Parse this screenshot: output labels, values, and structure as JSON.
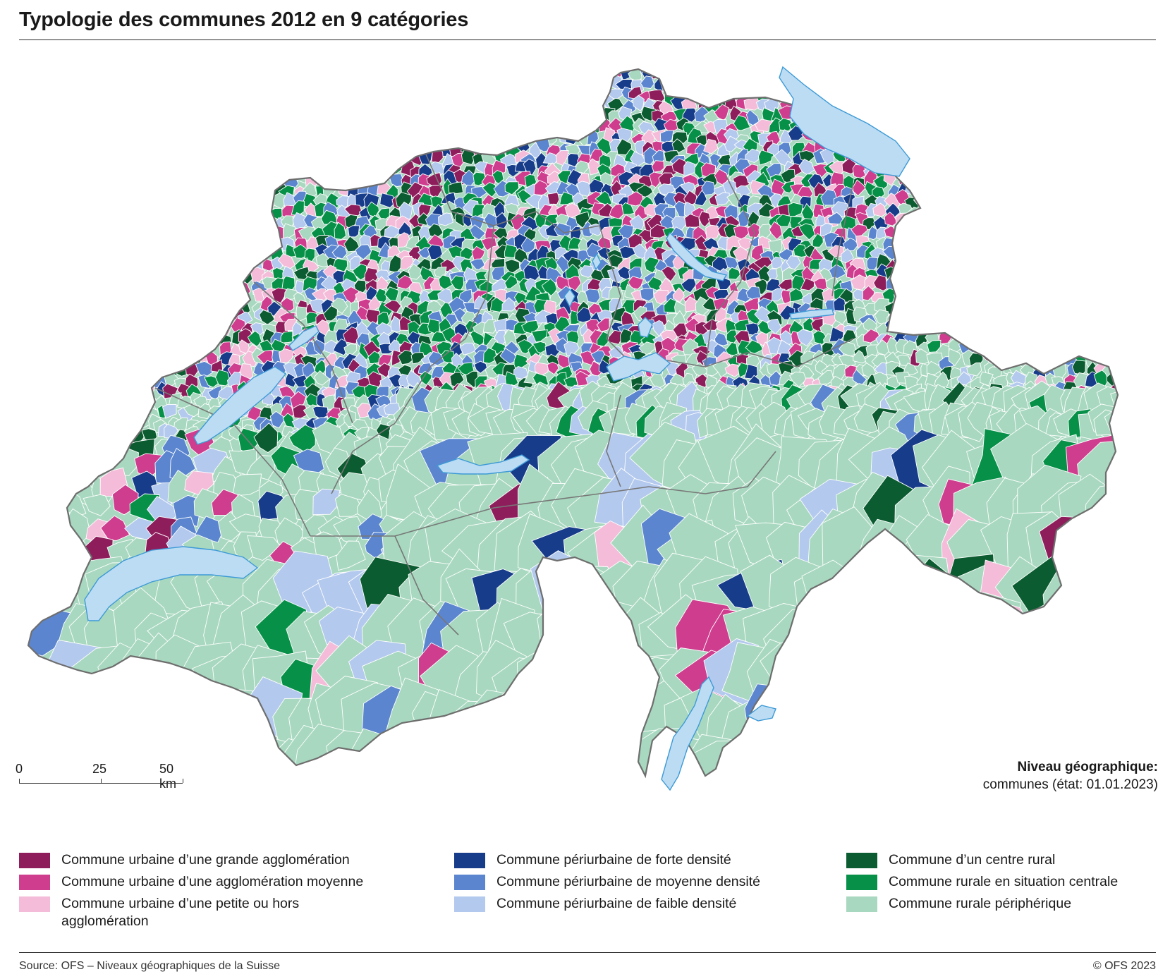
{
  "title": "Typologie des communes 2012 en 9 catégories",
  "colors": {
    "urban_large": "#8e1d5c",
    "urban_medium": "#cf3d8e",
    "urban_small": "#f4bcd8",
    "peri_high": "#173c8a",
    "peri_medium": "#5b86cf",
    "peri_low": "#b3c9ee",
    "rural_center": "#0b5c30",
    "rural_central": "#079148",
    "rural_peripheral": "#a8d8bf",
    "water": "#bcdcf4",
    "water_edge": "#3d9ad6",
    "border": "#6e6e6e"
  },
  "scale": {
    "labels": [
      "0",
      "25",
      "50 km"
    ]
  },
  "geo_note": {
    "heading": "Niveau géographique:",
    "text": "communes (état: 01.01.2023)"
  },
  "legend": {
    "col1": [
      {
        "label": "Commune urbaine d’une grande agglomération",
        "color": "#8e1d5c"
      },
      {
        "label": "Commune urbaine d’une agglomération moyenne",
        "color": "#cf3d8e"
      },
      {
        "label": "Commune urbaine d’une petite ou hors agglomération",
        "color": "#f4bcd8"
      }
    ],
    "col2": [
      {
        "label": "Commune périurbaine de forte densité",
        "color": "#173c8a"
      },
      {
        "label": "Commune périurbaine de moyenne densité",
        "color": "#5b86cf"
      },
      {
        "label": "Commune périurbaine de faible densité",
        "color": "#b3c9ee"
      }
    ],
    "col3": [
      {
        "label": "Commune d’un centre rural",
        "color": "#0b5c30"
      },
      {
        "label": "Commune rurale en situation centrale",
        "color": "#079148"
      },
      {
        "label": "Commune rurale périphérique",
        "color": "#a8d8bf"
      }
    ]
  },
  "footer": {
    "source": "Source: OFS – Niveaux géographiques de la Suisse",
    "copyright": "© OFS 2023"
  }
}
